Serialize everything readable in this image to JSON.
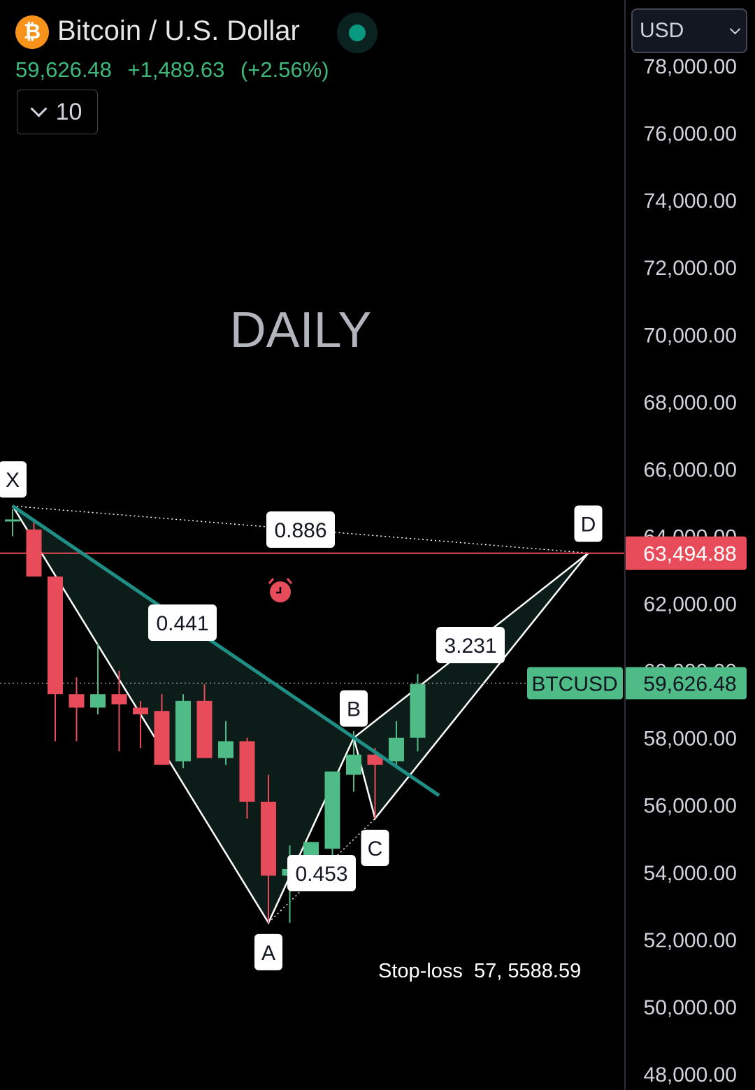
{
  "header": {
    "coin_symbol": "₿",
    "title": "Bitcoin / U.S. Dollar",
    "price": "59,626.48",
    "change": "+1,489.63",
    "change_pct": "(+2.56%)",
    "indicators_count": "10"
  },
  "currency": "USD",
  "colors": {
    "up": "#4fbc87",
    "down": "#e84b5a",
    "pattern_fill": "#0c1d19",
    "trendline": "#1f8f86",
    "stop_line": "#e84b5a",
    "price_tag": "#4fbc87"
  },
  "chart_data": {
    "type": "candlestick",
    "watermark": "DAILY",
    "ylim": [
      48000,
      78000
    ],
    "y_ticks": [
      "48,000.00",
      "50,000.00",
      "52,000.00",
      "54,000.00",
      "56,000.00",
      "58,000.00",
      "60,000.00",
      "62,000.00",
      "64,000.00",
      "66,000.00",
      "68,000.00",
      "70,000.00",
      "72,000.00",
      "74,000.00",
      "76,000.00",
      "78,000.00"
    ],
    "candles": [
      {
        "o": 64500,
        "h": 64800,
        "l": 64000,
        "c": 64500
      },
      {
        "o": 64200,
        "h": 64500,
        "l": 62800,
        "c": 62800
      },
      {
        "o": 62800,
        "h": 62800,
        "l": 57900,
        "c": 59300
      },
      {
        "o": 59300,
        "h": 59800,
        "l": 57900,
        "c": 58900
      },
      {
        "o": 58900,
        "h": 60800,
        "l": 58700,
        "c": 59300
      },
      {
        "o": 59300,
        "h": 60000,
        "l": 57600,
        "c": 59000
      },
      {
        "o": 58900,
        "h": 59100,
        "l": 57700,
        "c": 58700
      },
      {
        "o": 58800,
        "h": 59300,
        "l": 57200,
        "c": 57200
      },
      {
        "o": 57300,
        "h": 59300,
        "l": 57100,
        "c": 59100
      },
      {
        "o": 59100,
        "h": 59600,
        "l": 57400,
        "c": 57400
      },
      {
        "o": 57400,
        "h": 58500,
        "l": 57200,
        "c": 57900
      },
      {
        "o": 57900,
        "h": 58000,
        "l": 55600,
        "c": 56100
      },
      {
        "o": 56100,
        "h": 56900,
        "l": 52500,
        "c": 53900
      },
      {
        "o": 53900,
        "h": 54800,
        "l": 52500,
        "c": 54100
      },
      {
        "o": 54000,
        "h": 54900,
        "l": 53600,
        "c": 54900
      },
      {
        "o": 54700,
        "h": 57000,
        "l": 54500,
        "c": 57000
      },
      {
        "o": 56900,
        "h": 58200,
        "l": 56400,
        "c": 57500
      },
      {
        "o": 57500,
        "h": 57700,
        "l": 55600,
        "c": 57200
      },
      {
        "o": 57300,
        "h": 58500,
        "l": 57200,
        "c": 58000
      },
      {
        "o": 58000,
        "h": 59900,
        "l": 57600,
        "c": 59600
      }
    ],
    "pattern_points": [
      {
        "name": "X",
        "candle": 0,
        "price": 64900
      },
      {
        "name": "A",
        "candle": 12,
        "price": 52500
      },
      {
        "name": "B",
        "candle": 16,
        "price": 58000
      },
      {
        "name": "C",
        "candle": 17,
        "price": 55600
      },
      {
        "name": "D",
        "candle": 27,
        "price": 63500
      }
    ],
    "ratios": [
      {
        "label": "0.886",
        "at": "XD"
      },
      {
        "label": "0.441",
        "at": "XB"
      },
      {
        "label": "0.453",
        "at": "AC"
      },
      {
        "label": "3.231",
        "at": "BD"
      }
    ],
    "stop_price": "63,494.88",
    "stop_value": 63494.88,
    "current_tag": "BTCUSD",
    "current_price": "59,626.48",
    "current_value": 59626.48,
    "annotation": "Stop-loss  57, 5588.59"
  }
}
